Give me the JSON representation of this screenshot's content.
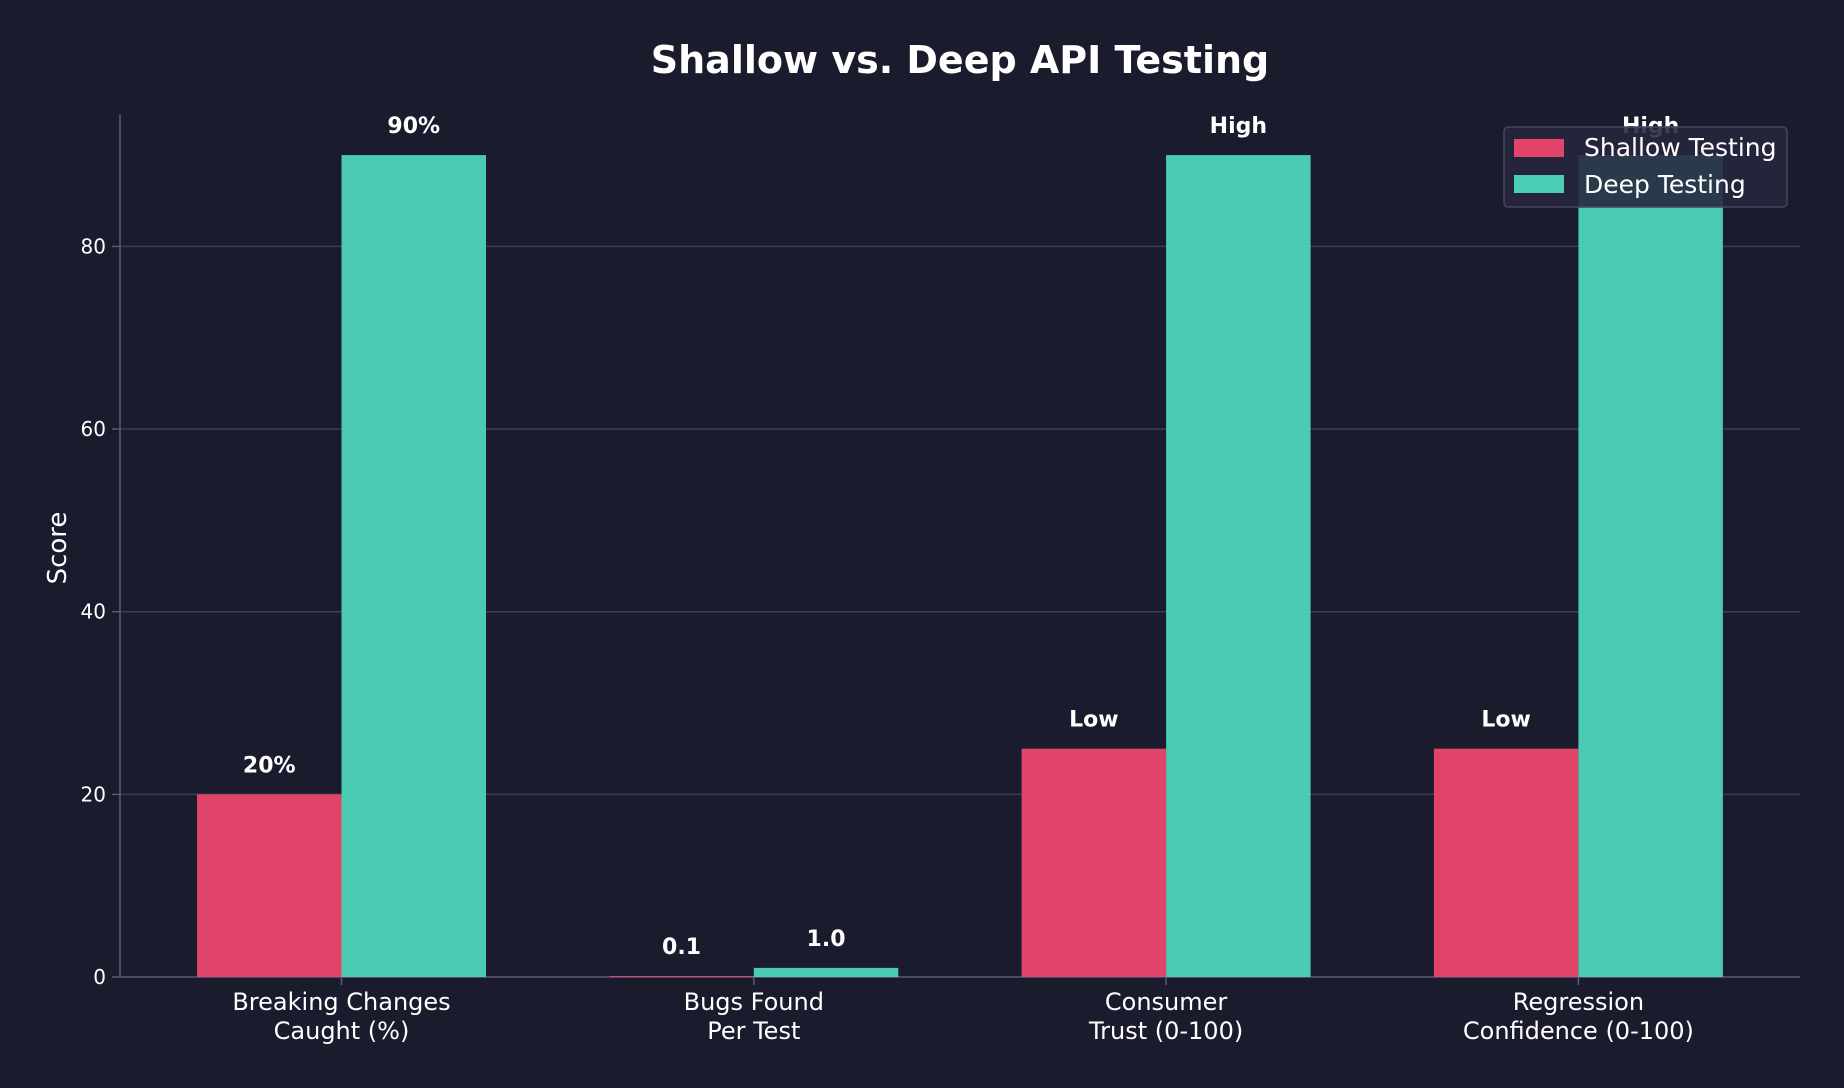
{
  "chart_data": {
    "type": "bar",
    "title": "Shallow vs. Deep API Testing",
    "xlabel": "",
    "ylabel": "Score",
    "ylim": [
      0,
      94.5
    ],
    "yticks": [
      0,
      20,
      40,
      60,
      80
    ],
    "grid": true,
    "legend_position": "top-right",
    "categories": [
      [
        "Breaking Changes",
        "Caught (%)"
      ],
      [
        "Bugs Found",
        "Per Test"
      ],
      [
        "Consumer",
        "Trust (0-100)"
      ],
      [
        "Regression",
        "Confidence (0-100)"
      ]
    ],
    "series": [
      {
        "name": "Shallow Testing",
        "color": "#ef476f",
        "values": [
          20,
          0.1,
          25,
          25
        ],
        "labels": [
          "20%",
          "0.1",
          "Low",
          "Low"
        ]
      },
      {
        "name": "Deep Testing",
        "color": "#4fd8bb",
        "values": [
          90,
          1.0,
          90,
          90
        ],
        "labels": [
          "90%",
          "1.0",
          "High",
          "High"
        ]
      }
    ]
  }
}
